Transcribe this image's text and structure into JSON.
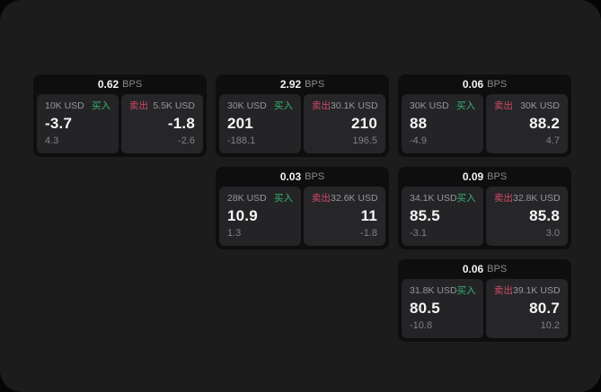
{
  "ui": {
    "bps_unit": "BPS",
    "buy_label": "买入",
    "sell_label": "卖出"
  },
  "colors": {
    "background_outer": "#050505",
    "surface": "#1c1c1d",
    "card": "#0e0e0f",
    "panel": "#242427",
    "buy_green": "#35b56f",
    "sell_red": "#d14b66",
    "text_primary": "#f5f5f6",
    "text_secondary": "#97979b",
    "text_muted": "#808085"
  },
  "cards": [
    {
      "row": 1,
      "col": 1,
      "bps": "0.62",
      "buy": {
        "amount": "10K USD",
        "value": "-3.7",
        "sub": "4.3"
      },
      "sell": {
        "amount": "5.5K USD",
        "value": "-1.8",
        "sub": "-2.6"
      }
    },
    {
      "row": 1,
      "col": 2,
      "bps": "2.92",
      "buy": {
        "amount": "30K USD",
        "value": "201",
        "sub": "-188.1"
      },
      "sell": {
        "amount": "30.1K USD",
        "value": "210",
        "sub": "196.5"
      }
    },
    {
      "row": 1,
      "col": 3,
      "bps": "0.06",
      "buy": {
        "amount": "30K USD",
        "value": "88",
        "sub": "-4.9"
      },
      "sell": {
        "amount": "30K USD",
        "value": "88.2",
        "sub": "4.7"
      }
    },
    {
      "row": 2,
      "col": 2,
      "bps": "0.03",
      "buy": {
        "amount": "28K USD",
        "value": "10.9",
        "sub": "1.3"
      },
      "sell": {
        "amount": "32.6K USD",
        "value": "11",
        "sub": "-1.8"
      }
    },
    {
      "row": 2,
      "col": 3,
      "bps": "0.09",
      "buy": {
        "amount": "34.1K USD",
        "value": "85.5",
        "sub": "-3.1"
      },
      "sell": {
        "amount": "32.8K USD",
        "value": "85.8",
        "sub": "3.0"
      }
    },
    {
      "row": 3,
      "col": 3,
      "bps": "0.06",
      "buy": {
        "amount": "31.8K USD",
        "value": "80.5",
        "sub": "-10.8"
      },
      "sell": {
        "amount": "39.1K USD",
        "value": "80.7",
        "sub": "10.2"
      }
    }
  ]
}
